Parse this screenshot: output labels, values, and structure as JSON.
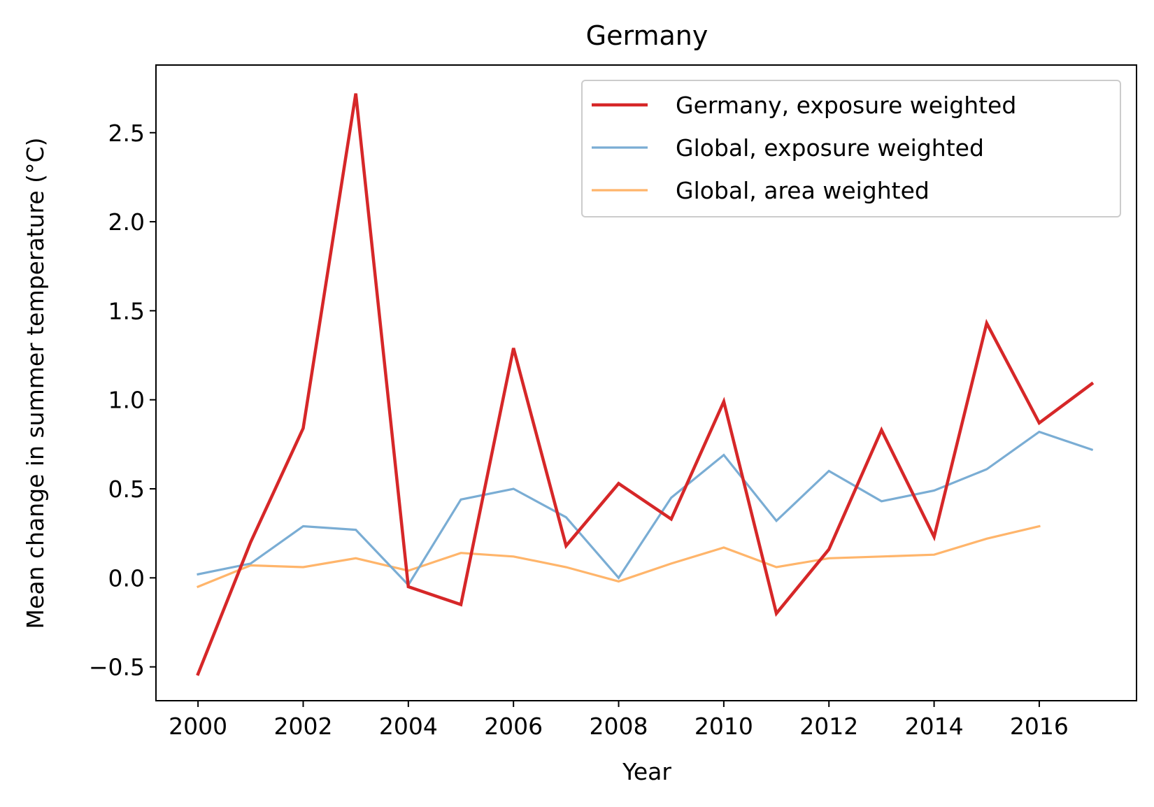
{
  "chart_data": {
    "type": "line",
    "title": "Germany",
    "xlabel": "Year",
    "ylabel": "Mean change in summer temperature (°C)",
    "xlim": [
      1999.2,
      2017.85
    ],
    "ylim": [
      -0.69,
      2.88
    ],
    "x_ticks": [
      2000,
      2002,
      2004,
      2006,
      2008,
      2010,
      2012,
      2014,
      2016
    ],
    "x_tick_labels": [
      "2000",
      "2002",
      "2004",
      "2006",
      "2008",
      "2010",
      "2012",
      "2014",
      "2016"
    ],
    "y_ticks": [
      -0.5,
      0.0,
      0.5,
      1.0,
      1.5,
      2.0,
      2.5
    ],
    "y_tick_labels": [
      "−0.5",
      "0.0",
      "0.5",
      "1.0",
      "1.5",
      "2.0",
      "2.5"
    ],
    "grid": false,
    "legend_position": "top-right",
    "series": [
      {
        "name": "Germany, exposure weighted",
        "color": "#d62728",
        "x": [
          2000,
          2001,
          2002,
          2003,
          2004,
          2005,
          2006,
          2007,
          2008,
          2009,
          2010,
          2011,
          2012,
          2013,
          2014,
          2015,
          2016,
          2017
        ],
        "values": [
          -0.54,
          0.2,
          0.84,
          2.72,
          -0.05,
          -0.15,
          1.29,
          0.18,
          0.53,
          0.33,
          0.99,
          -0.2,
          0.16,
          0.83,
          0.23,
          1.43,
          0.87,
          1.09
        ]
      },
      {
        "name": "Global, exposure weighted",
        "color": "#7aadd4",
        "x": [
          2000,
          2001,
          2002,
          2003,
          2004,
          2005,
          2006,
          2007,
          2008,
          2009,
          2010,
          2011,
          2012,
          2013,
          2014,
          2015,
          2016,
          2017
        ],
        "values": [
          0.02,
          0.08,
          0.29,
          0.27,
          -0.04,
          0.44,
          0.5,
          0.34,
          0.0,
          0.45,
          0.69,
          0.32,
          0.6,
          0.43,
          0.49,
          0.61,
          0.82,
          0.72
        ]
      },
      {
        "name": "Global, area weighted",
        "color": "#ffb56b",
        "x": [
          2000,
          2001,
          2002,
          2003,
          2004,
          2005,
          2006,
          2007,
          2008,
          2009,
          2010,
          2011,
          2012,
          2013,
          2014,
          2015,
          2016
        ],
        "values": [
          -0.05,
          0.07,
          0.06,
          0.11,
          0.04,
          0.14,
          0.12,
          0.06,
          -0.02,
          0.08,
          0.17,
          0.06,
          0.11,
          0.12,
          0.13,
          0.22,
          0.29
        ]
      }
    ]
  }
}
